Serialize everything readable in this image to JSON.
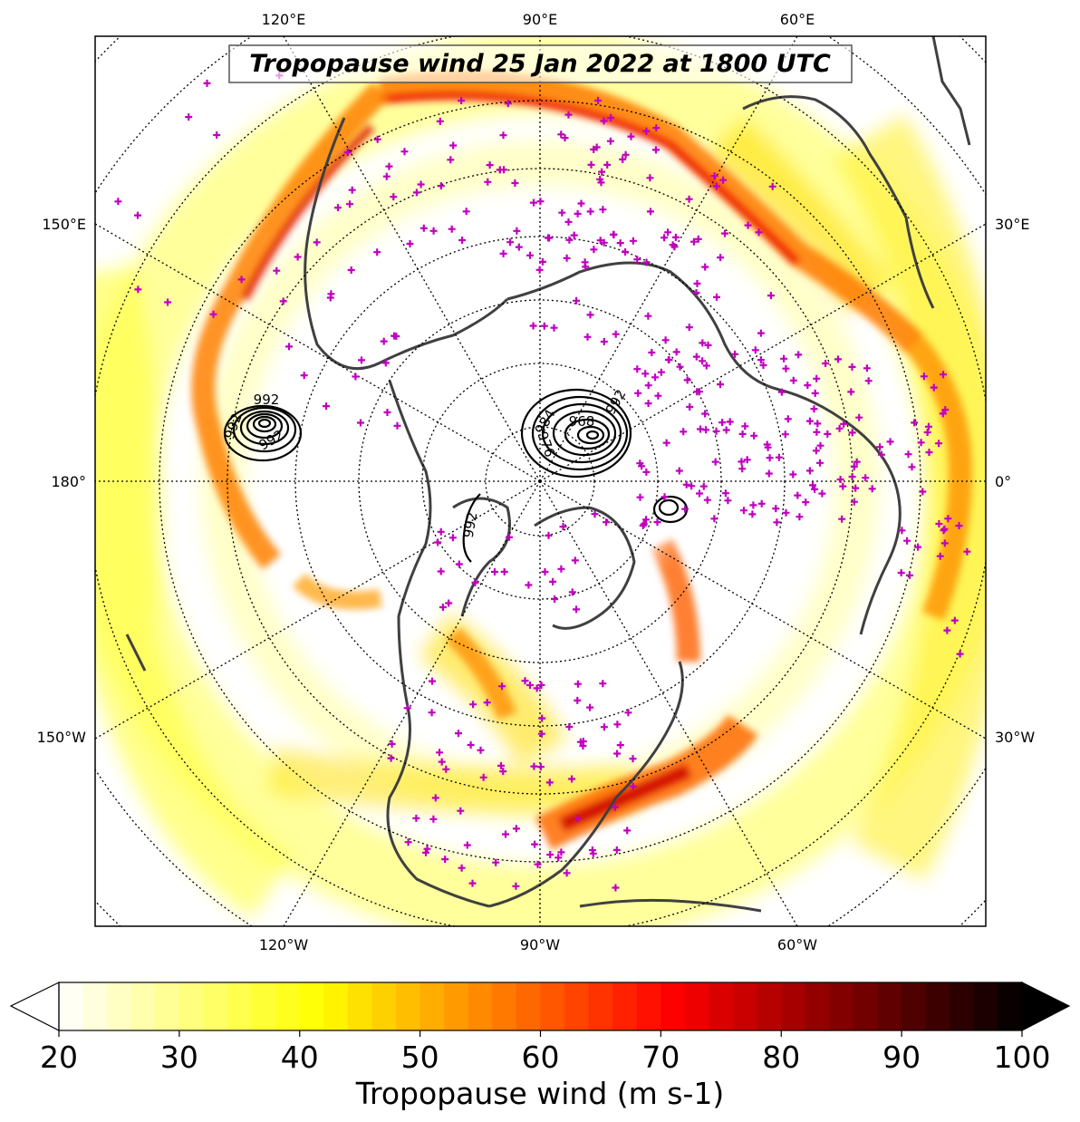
{
  "title": "Tropopause wind 25 Jan 2022 at 1800 UTC",
  "colorbar": {
    "label": "Tropopause wind (m s-1)",
    "min": 20,
    "max": 100,
    "ticks": [
      "20",
      "30",
      "40",
      "50",
      "60",
      "70",
      "80",
      "90",
      "100"
    ],
    "extend": "both",
    "colormap": "hot_r"
  },
  "longitude_labels": {
    "top": [
      "120°E",
      "90°E",
      "60°E"
    ],
    "bottom": [
      "120°W",
      "90°W",
      "60°W"
    ],
    "left": [
      "150°E",
      "180°",
      "150°W"
    ],
    "right": [
      "30°E",
      "0°",
      "30°W"
    ]
  },
  "pressure_contour_labels": [
    "992",
    "992",
    "992",
    "968",
    "984",
    "976",
    "992",
    "992"
  ],
  "colors": {
    "coastline": "#404040",
    "station_marker": "#c000c0",
    "contour": "#000000",
    "grid": "#000000"
  }
}
